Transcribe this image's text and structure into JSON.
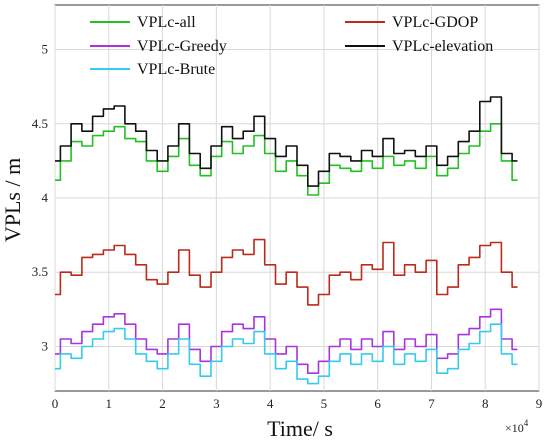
{
  "chart_data": {
    "type": "line",
    "xlabel": "Time/ s",
    "ylabel": "VPLs / m",
    "x_exponent": "×10",
    "x_exponent_power": "4",
    "xlim": [
      0,
      9
    ],
    "ylim": [
      2.7,
      5.3
    ],
    "xticks": [
      "0",
      "1",
      "2",
      "3",
      "4",
      "5",
      "6",
      "7",
      "8",
      "9"
    ],
    "yticks": [
      "3",
      "3.5",
      "4",
      "4.5",
      "5"
    ],
    "grid": true,
    "legend_position": "top",
    "x": [
      0,
      0.2,
      0.4,
      0.6,
      0.8,
      1.0,
      1.2,
      1.4,
      1.6,
      1.8,
      2.0,
      2.2,
      2.4,
      2.6,
      2.8,
      3.0,
      3.2,
      3.4,
      3.6,
      3.8,
      4.0,
      4.2,
      4.4,
      4.6,
      4.8,
      5.0,
      5.2,
      5.4,
      5.6,
      5.8,
      6.0,
      6.2,
      6.4,
      6.6,
      6.8,
      7.0,
      7.2,
      7.4,
      7.6,
      7.8,
      8.0,
      8.2,
      8.4,
      8.6
    ],
    "series": [
      {
        "name": "VPLc-all",
        "color": "#22c022",
        "values": [
          4.12,
          4.25,
          4.38,
          4.35,
          4.42,
          4.45,
          4.48,
          4.4,
          4.38,
          4.25,
          4.18,
          4.28,
          4.4,
          4.22,
          4.15,
          4.28,
          4.38,
          4.3,
          4.35,
          4.42,
          4.3,
          4.18,
          4.25,
          4.15,
          4.02,
          4.1,
          4.22,
          4.2,
          4.18,
          4.25,
          4.2,
          4.28,
          4.22,
          4.25,
          4.2,
          4.28,
          4.15,
          4.2,
          4.3,
          4.35,
          4.45,
          4.5,
          4.25,
          4.12
        ]
      },
      {
        "name": "VPLc-Greedy",
        "color": "#aa33dd",
        "values": [
          2.95,
          3.05,
          3.02,
          3.1,
          3.15,
          3.2,
          3.22,
          3.15,
          3.05,
          2.98,
          2.95,
          3.05,
          3.15,
          2.98,
          2.9,
          3.0,
          3.1,
          3.15,
          3.12,
          3.2,
          3.05,
          2.95,
          3.0,
          2.88,
          2.82,
          2.9,
          3.0,
          3.05,
          2.98,
          3.05,
          3.0,
          3.1,
          2.98,
          3.05,
          3.0,
          3.08,
          2.92,
          2.95,
          3.08,
          3.12,
          3.2,
          3.25,
          3.05,
          2.98
        ]
      },
      {
        "name": "VPLc-Brute",
        "color": "#33ccee",
        "values": [
          2.85,
          2.95,
          2.92,
          3.0,
          3.05,
          3.1,
          3.12,
          3.05,
          2.95,
          2.9,
          2.85,
          2.95,
          3.05,
          2.88,
          2.8,
          2.9,
          3.0,
          3.05,
          3.02,
          3.1,
          2.95,
          2.85,
          2.9,
          2.78,
          2.75,
          2.8,
          2.9,
          2.95,
          2.88,
          2.95,
          2.9,
          3.0,
          2.88,
          2.95,
          2.9,
          2.98,
          2.82,
          2.85,
          2.98,
          3.02,
          3.1,
          3.15,
          2.95,
          2.88
        ]
      },
      {
        "name": "VPLc-GDOP",
        "color": "#bb2a1a",
        "values": [
          3.35,
          3.5,
          3.48,
          3.6,
          3.62,
          3.65,
          3.68,
          3.62,
          3.55,
          3.45,
          3.42,
          3.5,
          3.65,
          3.48,
          3.4,
          3.5,
          3.6,
          3.65,
          3.62,
          3.72,
          3.55,
          3.42,
          3.5,
          3.4,
          3.28,
          3.35,
          3.48,
          3.5,
          3.45,
          3.55,
          3.52,
          3.7,
          3.48,
          3.55,
          3.5,
          3.58,
          3.35,
          3.4,
          3.55,
          3.6,
          3.68,
          3.7,
          3.5,
          3.4
        ]
      },
      {
        "name": "VPLc-elevation",
        "color": "#111111",
        "values": [
          4.25,
          4.35,
          4.5,
          4.45,
          4.55,
          4.6,
          4.62,
          4.5,
          4.45,
          4.32,
          4.25,
          4.35,
          4.5,
          4.3,
          4.2,
          4.35,
          4.48,
          4.4,
          4.45,
          4.55,
          4.4,
          4.28,
          4.35,
          4.22,
          4.08,
          4.18,
          4.3,
          4.28,
          4.25,
          4.32,
          4.28,
          4.4,
          4.3,
          4.32,
          4.28,
          4.35,
          4.22,
          4.28,
          4.38,
          4.45,
          4.65,
          4.68,
          4.3,
          4.25
        ]
      }
    ]
  }
}
